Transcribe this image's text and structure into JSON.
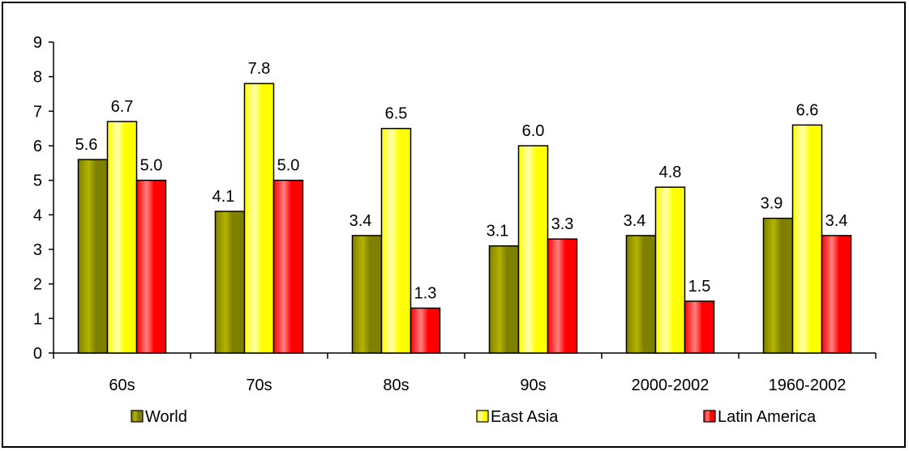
{
  "chart_data": {
    "type": "bar",
    "categories": [
      "60s",
      "70s",
      "80s",
      "90s",
      "2000-2002",
      "1960-2002"
    ],
    "series": [
      {
        "name": "World",
        "values": [
          5.6,
          4.1,
          3.4,
          3.1,
          3.4,
          3.9
        ],
        "labels": [
          "5.6",
          "4.1",
          "3.4",
          "3.1",
          "3.4",
          "3.9"
        ],
        "color": "#808000",
        "highlight": "#b3b300"
      },
      {
        "name": "East Asia",
        "values": [
          6.7,
          7.8,
          6.5,
          6.0,
          4.8,
          6.6
        ],
        "labels": [
          "6.7",
          "7.8",
          "6.5",
          "6.0",
          "4.8",
          "6.6"
        ],
        "color": "#ffff00",
        "highlight": "#ffffb0"
      },
      {
        "name": "Latin America",
        "values": [
          5.0,
          5.0,
          1.3,
          3.3,
          1.5,
          3.4
        ],
        "labels": [
          "5.0",
          "5.0",
          "1.3",
          "3.3",
          "1.5",
          "3.4"
        ],
        "color": "#ff0000",
        "highlight": "#ff8080"
      }
    ],
    "yticks": [
      "0",
      "1",
      "2",
      "3",
      "4",
      "5",
      "6",
      "7",
      "8",
      "9"
    ],
    "ylim": [
      0,
      9
    ],
    "legend_position": "bottom",
    "grid": false
  }
}
